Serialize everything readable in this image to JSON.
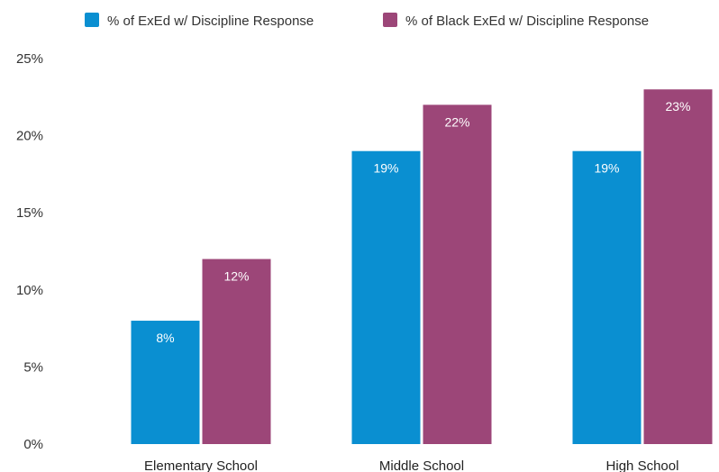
{
  "chart_data": {
    "type": "bar",
    "categories": [
      "Elementary School",
      "Middle School",
      "High School"
    ],
    "series": [
      {
        "name": "% of ExEd w/ Discipline Response",
        "values": [
          8,
          19,
          19
        ],
        "color": "#0a8fd1"
      },
      {
        "name": "% of Black ExEd w/ Discipline Response",
        "values": [
          12,
          22,
          23
        ],
        "color": "#9c4678"
      }
    ],
    "ylim": [
      0,
      25
    ],
    "yticks": [
      0,
      5,
      10,
      15,
      20,
      25
    ],
    "ytick_format": "{v}%",
    "value_label_format": "{v}%",
    "legend_position": "top",
    "grid": false
  }
}
